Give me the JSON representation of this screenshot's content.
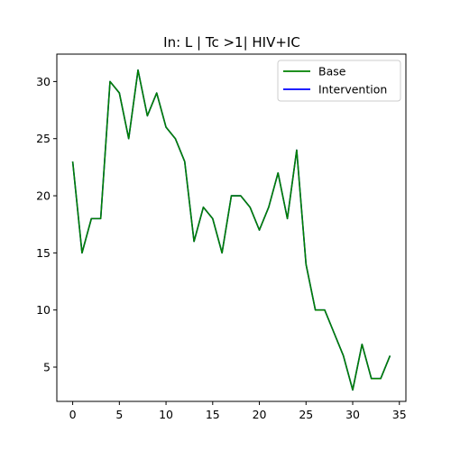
{
  "chart_data": {
    "type": "line",
    "title": "In: L | Tc >1| HIV+IC",
    "xlabel": "",
    "ylabel": "",
    "xlim": [
      -1.7,
      35.7
    ],
    "ylim": [
      2.0,
      32.4
    ],
    "xticks": [
      0,
      5,
      10,
      15,
      20,
      25,
      30,
      35
    ],
    "yticks": [
      5,
      10,
      15,
      20,
      25,
      30
    ],
    "legend_position": "top-right",
    "grid": false,
    "x": [
      0,
      1,
      2,
      3,
      4,
      5,
      6,
      7,
      8,
      9,
      10,
      11,
      12,
      13,
      14,
      15,
      16,
      17,
      18,
      19,
      20,
      21,
      22,
      23,
      24,
      25,
      26,
      27,
      28,
      29,
      30,
      31,
      32,
      33,
      34
    ],
    "series": [
      {
        "name": "Intervention",
        "color": "#0000ff",
        "values": [
          23,
          15,
          18,
          18,
          30,
          29,
          25,
          31,
          27,
          29,
          26,
          25,
          23,
          16,
          19,
          18,
          15,
          20,
          20,
          19,
          17,
          19,
          22,
          18,
          24,
          14,
          10,
          10,
          8,
          6,
          3,
          7,
          4,
          4,
          6
        ]
      },
      {
        "name": "Base",
        "color": "#008000",
        "values": [
          23,
          15,
          18,
          18,
          30,
          29,
          25,
          31,
          27,
          29,
          26,
          25,
          23,
          16,
          19,
          18,
          15,
          20,
          20,
          19,
          17,
          19,
          22,
          18,
          24,
          14,
          10,
          10,
          8,
          6,
          3,
          7,
          4,
          4,
          6
        ]
      }
    ],
    "legend_order": [
      "Base",
      "Intervention"
    ]
  }
}
